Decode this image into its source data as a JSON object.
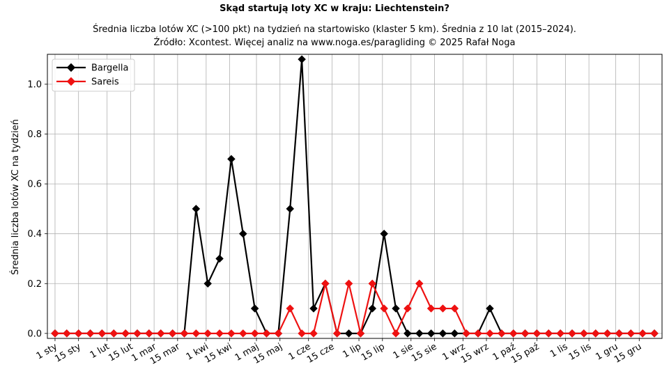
{
  "chart_data": {
    "type": "line",
    "title": "Skąd startują loty XC w kraju: Liechtenstein?",
    "subtitle_line1": "Średnia liczba lotów XC (>100 pkt) na tydzień na startowisko (klaster 5 km). Średnia z 10 lat (2015–2024).",
    "subtitle_line2": "Źródło: Xcontest. Więcej analiz na www.noga.es/paragliding © 2025 Rafał Noga",
    "xlabel": "",
    "ylabel": "Średnia liczba lotów XC na tydzień",
    "ylim": [
      -0.02,
      1.12
    ],
    "xlim": [
      0.35,
      52.65
    ],
    "grid": true,
    "legend_position": "top-left",
    "x_ticks": [
      {
        "label": "1 sty",
        "x": 1
      },
      {
        "label": "15 sty",
        "x": 3
      },
      {
        "label": "1 lut",
        "x": 5.43
      },
      {
        "label": "15 lut",
        "x": 7.43
      },
      {
        "label": "1 mar",
        "x": 9.43
      },
      {
        "label": "15 mar",
        "x": 11.43
      },
      {
        "label": "1 kwi",
        "x": 13.86
      },
      {
        "label": "15 kwi",
        "x": 15.86
      },
      {
        "label": "1 maj",
        "x": 18.14
      },
      {
        "label": "15 maj",
        "x": 20.14
      },
      {
        "label": "1 cze",
        "x": 22.57
      },
      {
        "label": "15 cze",
        "x": 24.57
      },
      {
        "label": "1 lip",
        "x": 26.86
      },
      {
        "label": "15 lip",
        "x": 28.86
      },
      {
        "label": "1 sie",
        "x": 31.29
      },
      {
        "label": "15 sie",
        "x": 33.29
      },
      {
        "label": "1 wrz",
        "x": 35.71
      },
      {
        "label": "15 wrz",
        "x": 37.71
      },
      {
        "label": "1 paź",
        "x": 40
      },
      {
        "label": "15 paź",
        "x": 42
      },
      {
        "label": "1 lis",
        "x": 44.43
      },
      {
        "label": "15 lis",
        "x": 46.43
      },
      {
        "label": "1 gru",
        "x": 48.71
      },
      {
        "label": "15 gru",
        "x": 50.71
      }
    ],
    "y_ticks": [
      0.0,
      0.2,
      0.4,
      0.6,
      0.8,
      1.0
    ],
    "y_tick_labels": [
      "0.0",
      "0.2",
      "0.4",
      "0.6",
      "0.8",
      "1.0"
    ],
    "x": [
      1,
      2,
      3,
      4,
      5,
      6,
      7,
      8,
      9,
      10,
      11,
      12,
      13,
      14,
      15,
      16,
      17,
      18,
      19,
      20,
      21,
      22,
      23,
      24,
      25,
      26,
      27,
      28,
      29,
      30,
      31,
      32,
      33,
      34,
      35,
      36,
      37,
      38,
      39,
      40,
      41,
      42,
      43,
      44,
      45,
      46,
      47,
      48,
      49,
      50,
      51,
      52
    ],
    "series": [
      {
        "name": "Bargella",
        "color": "#000000",
        "marker": "diamond",
        "values": [
          0,
          0,
          0,
          0,
          0,
          0,
          0,
          0,
          0,
          0,
          0,
          0,
          0.5,
          0.2,
          0.3,
          0.7,
          0.4,
          0.1,
          0,
          0,
          0.5,
          1.1,
          0.1,
          0.2,
          0,
          0,
          0,
          0.1,
          0.4,
          0.1,
          0,
          0,
          0,
          0,
          0,
          0,
          0,
          0.1,
          0,
          0,
          0,
          0,
          0,
          0,
          0,
          0,
          0,
          0,
          0,
          0,
          0,
          0
        ]
      },
      {
        "name": "Sareis",
        "color": "#ee1111",
        "marker": "diamond",
        "values": [
          0,
          0,
          0,
          0,
          0,
          0,
          0,
          0,
          0,
          0,
          0,
          0,
          0,
          0,
          0,
          0,
          0,
          0,
          0,
          0,
          0.1,
          0,
          0,
          0.2,
          0,
          0.2,
          0,
          0.2,
          0.1,
          0,
          0.1,
          0.2,
          0.1,
          0.1,
          0.1,
          0,
          0,
          0,
          0,
          0,
          0,
          0,
          0,
          0,
          0,
          0,
          0,
          0,
          0,
          0,
          0,
          0
        ]
      }
    ]
  }
}
